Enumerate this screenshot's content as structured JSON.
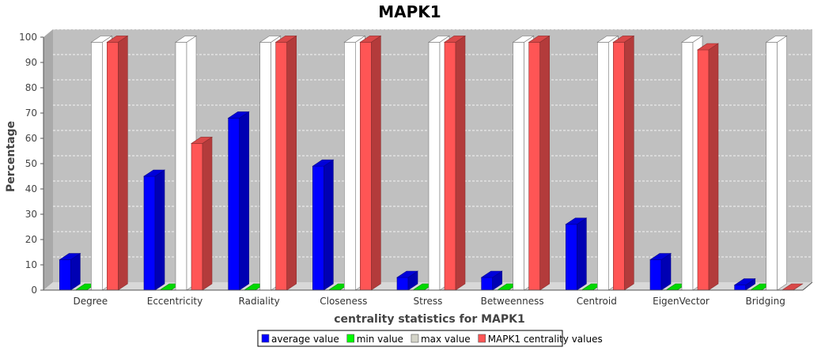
{
  "chart_data": {
    "type": "bar",
    "title": "MAPK1",
    "xlabel": "centrality statistics for MAPK1",
    "ylabel": "Percentage",
    "ylim": [
      0,
      100
    ],
    "yticks": [
      0,
      10,
      20,
      30,
      40,
      50,
      60,
      70,
      80,
      90,
      100
    ],
    "categories": [
      "Degree",
      "Eccentricity",
      "Radiality",
      "Closeness",
      "Stress",
      "Betweenness",
      "Centroid",
      "EigenVector",
      "Bridging"
    ],
    "series": [
      {
        "name": "average value",
        "color": "#0000ff",
        "values": [
          12,
          45,
          68,
          49,
          5,
          5,
          26,
          12,
          2
        ]
      },
      {
        "name": "min value",
        "color": "#00ff00",
        "values": [
          0,
          0,
          0,
          0,
          0,
          0,
          0,
          0,
          0
        ]
      },
      {
        "name": "max value",
        "color": "#ffffff",
        "values": [
          98,
          98,
          98,
          98,
          98,
          98,
          98,
          98,
          98
        ]
      },
      {
        "name": "MAPK1 centrality values",
        "color": "#ff5555",
        "values": [
          98,
          58,
          98,
          98,
          98,
          98,
          98,
          95,
          0
        ]
      }
    ],
    "grid": true,
    "legend": "bottom"
  }
}
